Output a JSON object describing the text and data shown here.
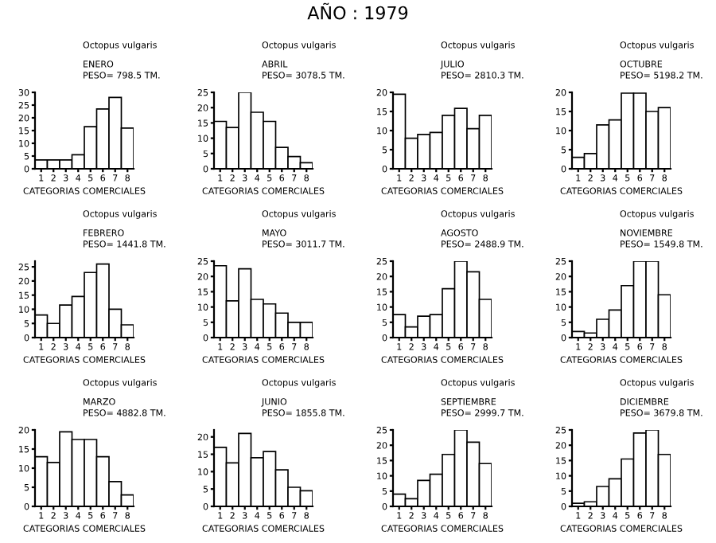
{
  "chart_data": [
    {
      "type": "other",
      "title": "AÑO : 1979"
    },
    {
      "type": "bar",
      "title": "ENERO",
      "subtitle": "Octopus vulgaris",
      "annotations": [
        "PESO= 798.5 TM."
      ],
      "xlabel": "CATEGORIAS COMERCIALES",
      "categories": [
        "1",
        "2",
        "3",
        "4",
        "5",
        "6",
        "7",
        "8"
      ],
      "values": [
        3.5,
        3.5,
        3.5,
        5.5,
        16.5,
        23.5,
        28,
        16
      ],
      "color": "#ffffff",
      "ylim": [
        0,
        30
      ],
      "yticks": [
        0,
        5,
        10,
        15,
        20,
        25,
        30
      ]
    },
    {
      "type": "bar",
      "title": "ABRIL",
      "subtitle": "Octopus vulgaris",
      "annotations": [
        "PESO= 3078.5 TM."
      ],
      "xlabel": "CATEGORIAS COMERCIALES",
      "categories": [
        "1",
        "2",
        "3",
        "4",
        "5",
        "6",
        "7",
        "8"
      ],
      "values": [
        15.5,
        13.5,
        25,
        18.5,
        15.5,
        7,
        4,
        2
      ],
      "color": "#ffffff",
      "ylim": [
        0,
        25
      ],
      "yticks": [
        0,
        5,
        10,
        15,
        20,
        25
      ]
    },
    {
      "type": "bar",
      "title": "JULIO",
      "subtitle": "Octopus vulgaris",
      "annotations": [
        "PESO= 2810.3 TM."
      ],
      "xlabel": "CATEGORIAS COMERCIALES",
      "categories": [
        "1",
        "2",
        "3",
        "4",
        "5",
        "6",
        "7",
        "8"
      ],
      "values": [
        19.5,
        8,
        9,
        9.5,
        14,
        15.8,
        10.5,
        14
      ],
      "color": "#ffffff",
      "ylim": [
        0,
        20
      ],
      "yticks": [
        0,
        5,
        10,
        15,
        20
      ]
    },
    {
      "type": "bar",
      "title": "OCTUBRE",
      "subtitle": "Octopus vulgaris",
      "annotations": [
        "PESO= 5198.2 TM."
      ],
      "xlabel": "CATEGORIAS COMERCIALES",
      "categories": [
        "1",
        "2",
        "3",
        "4",
        "5",
        "6",
        "7",
        "8"
      ],
      "values": [
        3,
        4,
        11.5,
        12.8,
        19.8,
        19.8,
        15,
        16
      ],
      "color": "#ffffff",
      "ylim": [
        0,
        20
      ],
      "yticks": [
        0,
        5,
        10,
        15,
        20
      ]
    },
    {
      "type": "bar",
      "title": "FEBRERO",
      "subtitle": "Octopus vulgaris",
      "annotations": [
        "PESO= 1441.8 TM."
      ],
      "xlabel": "CATEGORIAS COMERCIALES",
      "categories": [
        "1",
        "2",
        "3",
        "4",
        "5",
        "6",
        "7",
        "8"
      ],
      "values": [
        8,
        5,
        11.5,
        14.5,
        23,
        26,
        10,
        4.5
      ],
      "color": "#ffffff",
      "ylim": [
        0,
        27
      ],
      "yticks": [
        0,
        5,
        10,
        15,
        20,
        25
      ]
    },
    {
      "type": "bar",
      "title": "MAYO",
      "subtitle": "Octopus vulgaris",
      "annotations": [
        "PESO= 3011.7 TM."
      ],
      "xlabel": "CATEGORIAS COMERCIALES",
      "categories": [
        "1",
        "2",
        "3",
        "4",
        "5",
        "6",
        "7",
        "8"
      ],
      "values": [
        23.5,
        12,
        22.5,
        12.5,
        11,
        8,
        5,
        5
      ],
      "color": "#ffffff",
      "ylim": [
        0,
        25
      ],
      "yticks": [
        0,
        5,
        10,
        15,
        20,
        25
      ]
    },
    {
      "type": "bar",
      "title": "AGOSTO",
      "subtitle": "Octopus vulgaris",
      "annotations": [
        "PESO= 2488.9 TM."
      ],
      "xlabel": "CATEGORIAS COMERCIALES",
      "categories": [
        "1",
        "2",
        "3",
        "4",
        "5",
        "6",
        "7",
        "8"
      ],
      "values": [
        7.5,
        3.5,
        7,
        7.5,
        16,
        25,
        21.5,
        12.5
      ],
      "color": "#ffffff",
      "ylim": [
        0,
        25
      ],
      "yticks": [
        0,
        5,
        10,
        15,
        20,
        25
      ]
    },
    {
      "type": "bar",
      "title": "NOVIEMBRE",
      "subtitle": "Octopus vulgaris",
      "annotations": [
        "PESO= 1549.8 TM."
      ],
      "xlabel": "CATEGORIAS COMERCIALES",
      "categories": [
        "1",
        "2",
        "3",
        "4",
        "5",
        "6",
        "7",
        "8"
      ],
      "values": [
        2,
        1.5,
        6,
        9,
        17,
        25,
        25,
        14
      ],
      "color": "#ffffff",
      "ylim": [
        0,
        25
      ],
      "yticks": [
        0,
        5,
        10,
        15,
        20,
        25
      ]
    },
    {
      "type": "bar",
      "title": "MARZO",
      "subtitle": "Octopus vulgaris",
      "annotations": [
        "PESO= 4882.8 TM."
      ],
      "xlabel": "CATEGORIAS COMERCIALES",
      "categories": [
        "1",
        "2",
        "3",
        "4",
        "5",
        "6",
        "7",
        "8"
      ],
      "values": [
        13,
        11.5,
        19.5,
        17.5,
        17.5,
        13,
        6.5,
        3
      ],
      "color": "#ffffff",
      "ylim": [
        0,
        20
      ],
      "yticks": [
        0,
        5,
        10,
        15,
        20
      ]
    },
    {
      "type": "bar",
      "title": "JUNIO",
      "subtitle": "Octopus vulgaris",
      "annotations": [
        "PESO= 1855.8 TM."
      ],
      "xlabel": "CATEGORIAS COMERCIALES",
      "categories": [
        "1",
        "2",
        "3",
        "4",
        "5",
        "6",
        "7",
        "8"
      ],
      "values": [
        17,
        12.5,
        21,
        14,
        15.8,
        10.5,
        5.5,
        4.5
      ],
      "color": "#ffffff",
      "ylim": [
        0,
        22
      ],
      "yticks": [
        0,
        5,
        10,
        15,
        20
      ]
    },
    {
      "type": "bar",
      "title": "SEPTIEMBRE",
      "subtitle": "Octopus vulgaris",
      "annotations": [
        "PESO= 2999.7 TM."
      ],
      "xlabel": "CATEGORIAS COMERCIALES",
      "categories": [
        "1",
        "2",
        "3",
        "4",
        "5",
        "6",
        "7",
        "8"
      ],
      "values": [
        4,
        2.5,
        8.5,
        10.5,
        17,
        25,
        21,
        14
      ],
      "color": "#ffffff",
      "ylim": [
        0,
        25
      ],
      "yticks": [
        0,
        5,
        10,
        15,
        20,
        25
      ]
    },
    {
      "type": "bar",
      "title": "DICIEMBRE",
      "subtitle": "Octopus vulgaris",
      "annotations": [
        "PESO= 3679.8 TM."
      ],
      "xlabel": "CATEGORIAS COMERCIALES",
      "categories": [
        "1",
        "2",
        "3",
        "4",
        "5",
        "6",
        "7",
        "8"
      ],
      "values": [
        1,
        1.5,
        6.5,
        9,
        15.5,
        24,
        25,
        17
      ],
      "color": "#ffffff",
      "ylim": [
        0,
        25
      ],
      "yticks": [
        0,
        5,
        10,
        15,
        20,
        25
      ]
    }
  ]
}
